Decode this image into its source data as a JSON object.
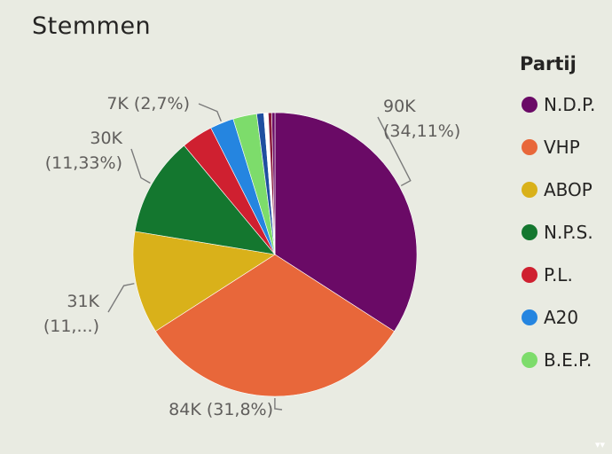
{
  "title": "Stemmen",
  "legend": {
    "title": "Partij",
    "items": [
      {
        "label": "N.D.P.",
        "color": "#6a0a66"
      },
      {
        "label": "VHP",
        "color": "#e8673a"
      },
      {
        "label": "ABOP",
        "color": "#d9b11a"
      },
      {
        "label": "N.P.S.",
        "color": "#14772f"
      },
      {
        "label": "P.L.",
        "color": "#cf2030"
      },
      {
        "label": "A20",
        "color": "#2585e0"
      },
      {
        "label": "B.E.P.",
        "color": "#7ddc6b"
      }
    ]
  },
  "chart_data": {
    "type": "pie",
    "title": "Stemmen",
    "legend_title": "Partij",
    "legend_position": "right",
    "slices": [
      {
        "name": "N.D.P.",
        "value": 34.11,
        "color": "#6a0a66"
      },
      {
        "name": "VHP",
        "value": 31.8,
        "color": "#e8673a"
      },
      {
        "name": "ABOP",
        "value": 11.7,
        "color": "#d9b11a"
      },
      {
        "name": "N.P.S.",
        "value": 11.33,
        "color": "#14772f"
      },
      {
        "name": "P.L.",
        "value": 3.6,
        "color": "#cf2030"
      },
      {
        "name": "A20",
        "value": 2.7,
        "color": "#2585e0"
      },
      {
        "name": "B.E.P.",
        "value": 2.7,
        "color": "#7ddc6b"
      },
      {
        "name": "",
        "value": 0.8,
        "color": "#1f4fa0"
      },
      {
        "name": "",
        "value": 0.5,
        "color": "#ffffff"
      },
      {
        "name": "",
        "value": 0.4,
        "color": "#8a1a3a"
      },
      {
        "name": "",
        "value": 0.36,
        "color": "#6a0a66"
      }
    ],
    "data_labels": [
      {
        "slice": 0,
        "line1": "90K",
        "line2": "(34,11%)"
      },
      {
        "slice": 1,
        "line1": "84K (31,8%)",
        "line2": ""
      },
      {
        "slice": 2,
        "line1": "31K",
        "line2": "(11,...)"
      },
      {
        "slice": 3,
        "line1": "30K",
        "line2": "(11,33%)"
      },
      {
        "slice": 5,
        "line1": "7K (2,7%)",
        "line2": ""
      }
    ]
  }
}
